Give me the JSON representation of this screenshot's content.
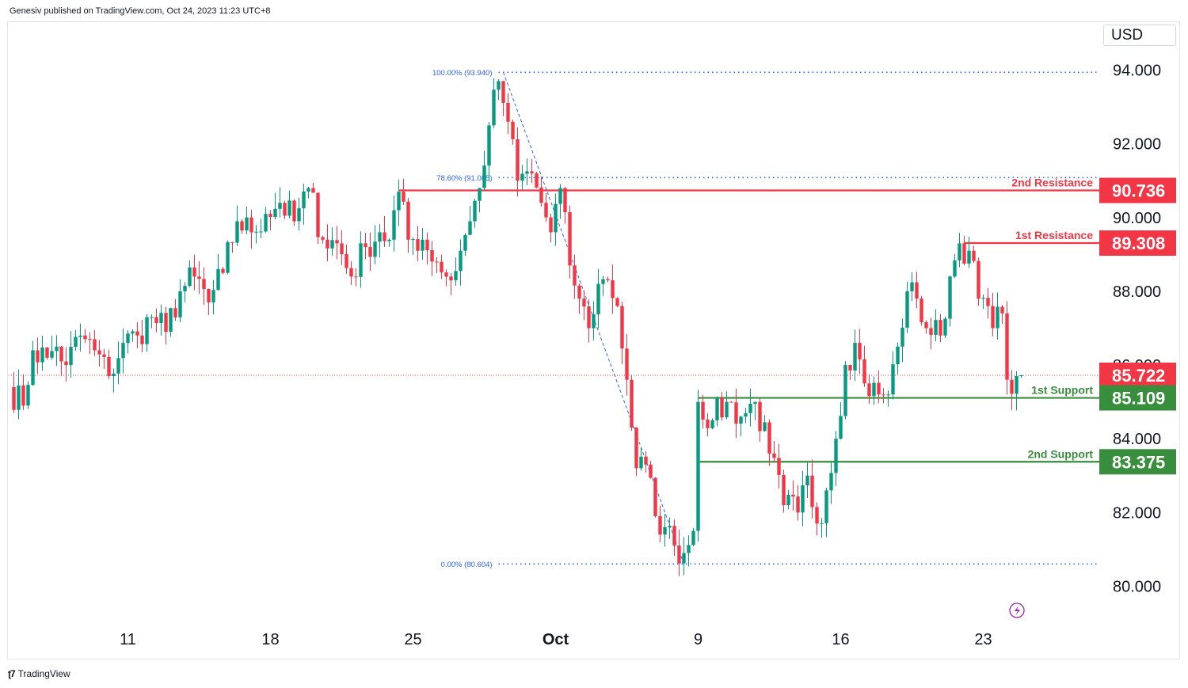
{
  "header": {
    "published_text": "Genesiv published on TradingView.com, Oct 24, 2023 11:23 UTC+8"
  },
  "currency": "USD",
  "footer": {
    "brand": "TradingView"
  },
  "colors": {
    "up": "#089981",
    "down": "#f23645",
    "fib": "#2962ff",
    "resistance": "#f23645",
    "support": "#388e3c",
    "current": "#f23645"
  },
  "chart_data": {
    "type": "candlestick",
    "title": "",
    "ylim": [
      79.0,
      95.3
    ],
    "y_ticks": [
      {
        "v": 94,
        "label": "94.000"
      },
      {
        "v": 92,
        "label": "92.000"
      },
      {
        "v": 90,
        "label": "90.000"
      },
      {
        "v": 88,
        "label": "88.000"
      },
      {
        "v": 84,
        "label": "84.000"
      },
      {
        "v": 82,
        "label": "82.000"
      },
      {
        "v": 80,
        "label": "80.000"
      }
    ],
    "hidden_tick": {
      "v": 86,
      "label": "86.000"
    },
    "x_ticks": [
      {
        "label": "11",
        "idx": 25
      },
      {
        "label": "18",
        "idx": 55
      },
      {
        "label": "25",
        "idx": 85
      },
      {
        "label": "Oct",
        "idx": 115,
        "bold": true
      },
      {
        "label": "9",
        "idx": 145
      },
      {
        "label": "16",
        "idx": 175
      },
      {
        "label": "23",
        "idx": 205
      }
    ],
    "candle_count": 220,
    "fibonacci": {
      "levels": [
        {
          "label": "100.00% (93.940)",
          "price": 93.94
        },
        {
          "label": "78.60% (91.085)",
          "price": 91.085
        },
        {
          "label": "0.00% (80.604)",
          "price": 80.604
        }
      ],
      "start_idx": 103,
      "end_idx": 230,
      "trend_from": {
        "idx": 104,
        "price": 93.94
      },
      "trend_to": {
        "idx": 142,
        "price": 80.604
      }
    },
    "levels": [
      {
        "name": "2nd Resistance",
        "price": 90.736,
        "label": "90.736",
        "kind": "resistance",
        "start_idx": 82
      },
      {
        "name": "1st Resistance",
        "price": 89.308,
        "label": "89.308",
        "kind": "resistance",
        "start_idx": 201
      },
      {
        "name": "1st Support",
        "price": 85.109,
        "label": "85.109",
        "kind": "support",
        "start_idx": 145
      },
      {
        "name": "2nd Support",
        "price": 83.375,
        "label": "83.375",
        "kind": "support",
        "start_idx": 145
      }
    ],
    "current_price": {
      "price": 85.722,
      "label": "85.722"
    },
    "anchors": [
      [
        0,
        85.4
      ],
      [
        3,
        84.9
      ],
      [
        5,
        86.4
      ],
      [
        8,
        86.2
      ],
      [
        10,
        86.5
      ],
      [
        12,
        86.0
      ],
      [
        15,
        86.8
      ],
      [
        18,
        86.4
      ],
      [
        21,
        85.7
      ],
      [
        24,
        86.6
      ],
      [
        27,
        86.8
      ],
      [
        30,
        87.3
      ],
      [
        33,
        86.9
      ],
      [
        36,
        88.0
      ],
      [
        39,
        88.4
      ],
      [
        42,
        87.7
      ],
      [
        45,
        88.5
      ],
      [
        48,
        89.9
      ],
      [
        51,
        89.6
      ],
      [
        54,
        90.1
      ],
      [
        57,
        90.4
      ],
      [
        60,
        89.9
      ],
      [
        63,
        90.8
      ],
      [
        66,
        89.4
      ],
      [
        69,
        89.3
      ],
      [
        72,
        88.4
      ],
      [
        75,
        89.2
      ],
      [
        78,
        89.6
      ],
      [
        80,
        89.4
      ],
      [
        82,
        90.7
      ],
      [
        84,
        89.4
      ],
      [
        87,
        89.4
      ],
      [
        90,
        88.8
      ],
      [
        93,
        88.3
      ],
      [
        95,
        89.1
      ],
      [
        97,
        89.9
      ],
      [
        99,
        90.8
      ],
      [
        101,
        92.5
      ],
      [
        103,
        93.7
      ],
      [
        105,
        92.6
      ],
      [
        107,
        91.0
      ],
      [
        110,
        91.2
      ],
      [
        112,
        90.4
      ],
      [
        114,
        89.6
      ],
      [
        116,
        90.8
      ],
      [
        118,
        88.7
      ],
      [
        120,
        87.8
      ],
      [
        122,
        87.0
      ],
      [
        124,
        88.2
      ],
      [
        126,
        88.3
      ],
      [
        128,
        87.6
      ],
      [
        130,
        85.6
      ],
      [
        132,
        83.2
      ],
      [
        134,
        83.3
      ],
      [
        136,
        81.9
      ],
      [
        138,
        81.6
      ],
      [
        140,
        81.1
      ],
      [
        142,
        80.9
      ],
      [
        144,
        81.5
      ],
      [
        145,
        85.0
      ],
      [
        148,
        84.5
      ],
      [
        151,
        85.0
      ],
      [
        154,
        84.6
      ],
      [
        157,
        85.0
      ],
      [
        160,
        83.6
      ],
      [
        163,
        82.2
      ],
      [
        166,
        82.0
      ],
      [
        168,
        83.0
      ],
      [
        170,
        81.7
      ],
      [
        172,
        82.6
      ],
      [
        174,
        84.0
      ],
      [
        176,
        86.0
      ],
      [
        178,
        86.6
      ],
      [
        180,
        85.5
      ],
      [
        183,
        85.2
      ],
      [
        185,
        85.2
      ],
      [
        187,
        86.5
      ],
      [
        189,
        88.0
      ],
      [
        191,
        87.8
      ],
      [
        193,
        87.0
      ],
      [
        196,
        86.8
      ],
      [
        198,
        88.4
      ],
      [
        200,
        89.3
      ],
      [
        202,
        89.1
      ],
      [
        204,
        87.8
      ],
      [
        206,
        87.6
      ],
      [
        207,
        87.0
      ],
      [
        209,
        87.4
      ],
      [
        210,
        85.6
      ],
      [
        212,
        85.7
      ],
      [
        213,
        85.72
      ]
    ]
  }
}
